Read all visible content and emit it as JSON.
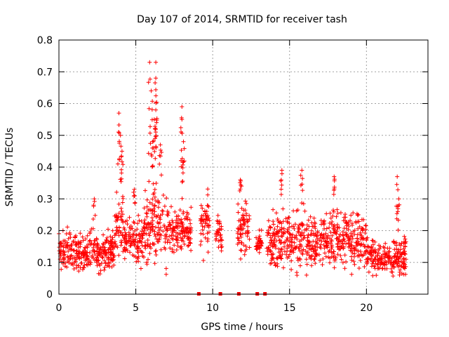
{
  "chart_data": {
    "type": "scatter",
    "title": "Day 107 of 2014, SRMTID for receiver tash",
    "xlabel": "GPS time / hours",
    "ylabel": "SRMTID / TECUs",
    "xlim": [
      0,
      24
    ],
    "ylim": [
      0,
      0.8
    ],
    "xticks": [
      0,
      5,
      10,
      15,
      20
    ],
    "yticks": [
      0,
      0.1,
      0.2,
      0.3,
      0.4,
      0.5,
      0.6,
      0.7,
      0.8
    ],
    "grid": true,
    "marker": "+",
    "colors": {
      "series": "#ff0000",
      "grid": "#a0a0a0",
      "axis": "#000000"
    },
    "segments": [
      {
        "x_start": 0.0,
        "x_end": 3.6,
        "y_min": 0.05,
        "y_max": 0.22,
        "peaks": [
          [
            2.3,
            0.3
          ]
        ]
      },
      {
        "x_start": 3.6,
        "x_end": 4.2,
        "y_min": 0.1,
        "y_max": 0.35,
        "peaks": [
          [
            3.9,
            0.57
          ],
          [
            4.0,
            0.5
          ],
          [
            4.1,
            0.45
          ]
        ]
      },
      {
        "x_start": 4.2,
        "x_end": 5.5,
        "y_min": 0.06,
        "y_max": 0.28,
        "peaks": [
          [
            4.9,
            0.33
          ]
        ]
      },
      {
        "x_start": 5.5,
        "x_end": 7.0,
        "y_min": 0.04,
        "y_max": 0.38,
        "peaks": [
          [
            5.9,
            0.73
          ],
          [
            6.3,
            0.73
          ],
          [
            6.3,
            0.68
          ],
          [
            6.0,
            0.64
          ],
          [
            6.3,
            0.58
          ],
          [
            6.2,
            0.55
          ],
          [
            6.1,
            0.48
          ],
          [
            6.6,
            0.47
          ]
        ]
      },
      {
        "x_start": 7.0,
        "x_end": 8.6,
        "y_min": 0.1,
        "y_max": 0.3,
        "peaks": [
          [
            8.0,
            0.59
          ],
          [
            8.0,
            0.55
          ],
          [
            8.1,
            0.48
          ]
        ]
      },
      {
        "x_start": 9.2,
        "x_end": 9.8,
        "y_min": 0.1,
        "y_max": 0.35,
        "peaks": []
      },
      {
        "x_start": 10.2,
        "x_end": 10.6,
        "y_min": 0.12,
        "y_max": 0.26,
        "peaks": []
      },
      {
        "x_start": 11.6,
        "x_end": 12.4,
        "y_min": 0.09,
        "y_max": 0.32,
        "peaks": [
          [
            11.8,
            0.36
          ]
        ]
      },
      {
        "x_start": 12.8,
        "x_end": 13.2,
        "y_min": 0.1,
        "y_max": 0.22,
        "peaks": []
      },
      {
        "x_start": 13.5,
        "x_end": 16.8,
        "y_min": 0.04,
        "y_max": 0.3,
        "peaks": [
          [
            14.5,
            0.39
          ],
          [
            15.8,
            0.39
          ]
        ]
      },
      {
        "x_start": 16.8,
        "x_end": 20.0,
        "y_min": 0.05,
        "y_max": 0.3,
        "peaks": [
          [
            17.9,
            0.37
          ]
        ]
      },
      {
        "x_start": 20.0,
        "x_end": 22.6,
        "y_min": 0.04,
        "y_max": 0.2,
        "peaks": [
          [
            22.0,
            0.37
          ],
          [
            22.1,
            0.3
          ]
        ]
      }
    ],
    "zero_markers_x": [
      9.1,
      10.5,
      11.7,
      12.9,
      13.4
    ]
  }
}
